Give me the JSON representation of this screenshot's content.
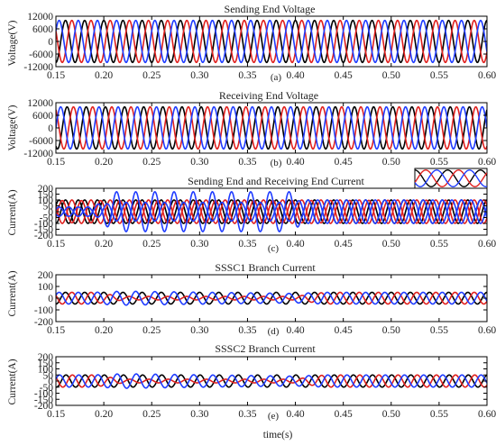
{
  "figure": {
    "xlabel": "time(s)",
    "x_ticks": [
      "0.15",
      "0.20",
      "0.25",
      "0.30",
      "0.35",
      "0.40",
      "0.45",
      "0.50",
      "0.55",
      "0.60"
    ]
  },
  "chart_data": [
    {
      "id": "a",
      "type": "line",
      "panel_label": "(a)",
      "title": "Sending End Voltage",
      "ylabel": "Voltage(V)",
      "xlim": [
        0.15,
        0.6
      ],
      "ylim": [
        -12000,
        12000
      ],
      "y_ticks": [
        "12000",
        "6000",
        "0",
        "-6000",
        "-12000"
      ],
      "grid": false,
      "frequency_hz": 50,
      "series": [
        {
          "color": "#000000",
          "phase_deg": 90,
          "amplitude": [
            [
              0.15,
              10000
            ],
            [
              0.6,
              10000
            ]
          ]
        },
        {
          "color": "#e0201e",
          "phase_deg": -30,
          "amplitude": [
            [
              0.15,
              10000
            ],
            [
              0.6,
              10000
            ]
          ]
        },
        {
          "color": "#1f3cff",
          "phase_deg": 210,
          "amplitude": [
            [
              0.15,
              10000
            ],
            [
              0.6,
              10000
            ]
          ]
        }
      ]
    },
    {
      "id": "b",
      "type": "line",
      "panel_label": "(b)",
      "title": "Receiving End Voltage",
      "ylabel": "Voltage(V)",
      "xlim": [
        0.15,
        0.6
      ],
      "ylim": [
        -12000,
        12000
      ],
      "y_ticks": [
        "12000",
        "6000",
        "0",
        "-6000",
        "-12000"
      ],
      "grid": false,
      "frequency_hz": 50,
      "series": [
        {
          "color": "#000000",
          "phase_deg": 60,
          "amplitude": [
            [
              0.15,
              10000
            ],
            [
              0.6,
              10000
            ]
          ]
        },
        {
          "color": "#e0201e",
          "phase_deg": -60,
          "amplitude": [
            [
              0.15,
              10000
            ],
            [
              0.6,
              10000
            ]
          ]
        },
        {
          "color": "#1f3cff",
          "phase_deg": 180,
          "amplitude": [
            [
              0.15,
              10000
            ],
            [
              0.6,
              10000
            ]
          ]
        }
      ]
    },
    {
      "id": "c",
      "type": "line",
      "panel_label": "(c)",
      "title": "Sending End and Receiving End Current",
      "ylabel": "Current(A)",
      "xlim": [
        0.15,
        0.6
      ],
      "ylim": [
        -200,
        200
      ],
      "y_ticks": [
        "200",
        "150",
        "100",
        "50",
        "0",
        "-50",
        "-100",
        "-150",
        "-200"
      ],
      "grid": false,
      "frequency_hz": 50,
      "inset": true,
      "series": [
        {
          "color": "#000000",
          "phase_deg": 90,
          "amplitude": [
            [
              0.15,
              100
            ],
            [
              0.4,
              100
            ],
            [
              0.6,
              100
            ]
          ]
        },
        {
          "color": "#000000",
          "phase_deg": 210,
          "amplitude": [
            [
              0.15,
              100
            ],
            [
              0.4,
              100
            ],
            [
              0.6,
              100
            ]
          ]
        },
        {
          "color": "#e0201e",
          "phase_deg": -30,
          "amplitude": [
            [
              0.15,
              100
            ],
            [
              0.4,
              100
            ],
            [
              0.6,
              100
            ]
          ]
        },
        {
          "color": "#e0201e",
          "phase_deg": 150,
          "amplitude": [
            [
              0.15,
              95
            ],
            [
              0.4,
              95
            ],
            [
              0.6,
              100
            ]
          ]
        },
        {
          "color": "#1f3cff",
          "phase_deg": 210,
          "amplitude": [
            [
              0.15,
              40
            ],
            [
              0.19,
              40
            ],
            [
              0.21,
              170
            ],
            [
              0.4,
              170
            ],
            [
              0.405,
              100
            ],
            [
              0.6,
              100
            ]
          ]
        },
        {
          "color": "#1f3cff",
          "phase_deg": 30,
          "amplitude": [
            [
              0.15,
              40
            ],
            [
              0.19,
              40
            ],
            [
              0.21,
              80
            ],
            [
              0.4,
              80
            ],
            [
              0.405,
              100
            ],
            [
              0.6,
              100
            ]
          ]
        }
      ]
    },
    {
      "id": "d",
      "type": "line",
      "panel_label": "(d)",
      "title": "SSSC1 Branch Current",
      "ylabel": "Current(A)",
      "xlim": [
        0.15,
        0.6
      ],
      "ylim": [
        -200,
        200
      ],
      "y_ticks": [
        "200",
        "100",
        "0",
        "-100",
        "-200"
      ],
      "grid": false,
      "frequency_hz": 50,
      "series": [
        {
          "color": "#000000",
          "phase_deg": 90,
          "amplitude": [
            [
              0.15,
              50
            ],
            [
              0.6,
              50
            ]
          ]
        },
        {
          "color": "#e0201e",
          "phase_deg": -30,
          "amplitude": [
            [
              0.15,
              50
            ],
            [
              0.19,
              50
            ],
            [
              0.22,
              15
            ],
            [
              0.4,
              15
            ],
            [
              0.43,
              50
            ],
            [
              0.6,
              50
            ]
          ]
        },
        {
          "color": "#1f3cff",
          "phase_deg": 210,
          "amplitude": [
            [
              0.15,
              50
            ],
            [
              0.19,
              50
            ],
            [
              0.22,
              60
            ],
            [
              0.4,
              40
            ],
            [
              0.43,
              50
            ],
            [
              0.6,
              50
            ]
          ]
        }
      ]
    },
    {
      "id": "e",
      "type": "line",
      "panel_label": "(e)",
      "title": "SSSC2 Branch Current",
      "ylabel": "Current(A)",
      "xlim": [
        0.15,
        0.6
      ],
      "ylim": [
        -200,
        200
      ],
      "y_ticks": [
        "200",
        "150",
        "100",
        "50",
        "0",
        "-50",
        "-100",
        "-150",
        "-200"
      ],
      "grid": false,
      "frequency_hz": 50,
      "series": [
        {
          "color": "#000000",
          "phase_deg": 80,
          "amplitude": [
            [
              0.15,
              50
            ],
            [
              0.6,
              50
            ]
          ]
        },
        {
          "color": "#e0201e",
          "phase_deg": -40,
          "amplitude": [
            [
              0.15,
              50
            ],
            [
              0.19,
              50
            ],
            [
              0.22,
              15
            ],
            [
              0.4,
              15
            ],
            [
              0.43,
              50
            ],
            [
              0.6,
              50
            ]
          ]
        },
        {
          "color": "#1f3cff",
          "phase_deg": 200,
          "amplitude": [
            [
              0.15,
              50
            ],
            [
              0.19,
              50
            ],
            [
              0.22,
              60
            ],
            [
              0.4,
              40
            ],
            [
              0.43,
              50
            ],
            [
              0.6,
              50
            ]
          ]
        }
      ]
    }
  ]
}
